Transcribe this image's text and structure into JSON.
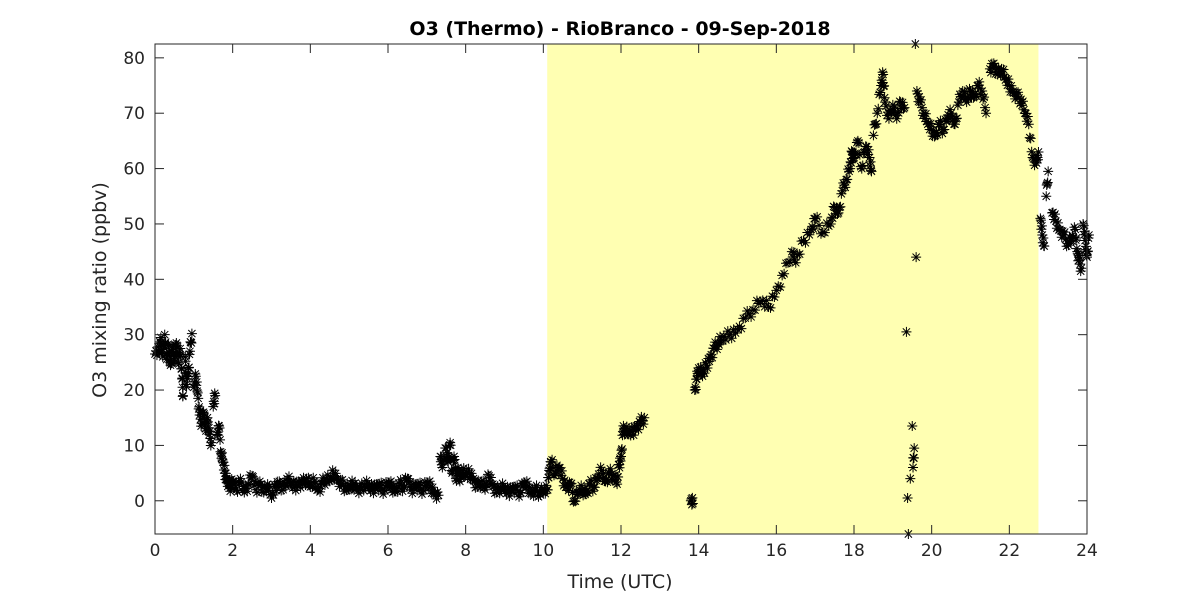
{
  "chart_data": {
    "type": "scatter",
    "title": "O3 (Thermo) - RioBranco - 09-Sep-2018",
    "xlabel": "Time (UTC)",
    "ylabel": "O3 mixing ratio (ppbv)",
    "xlim": [
      0,
      24
    ],
    "ylim": [
      -6,
      82.5
    ],
    "xticks": [
      0,
      2,
      4,
      6,
      8,
      10,
      12,
      14,
      16,
      18,
      20,
      22,
      24
    ],
    "yticks": [
      0,
      10,
      20,
      30,
      40,
      50,
      60,
      70,
      80
    ],
    "grid": false,
    "marker": "asterisk",
    "colors": {
      "marker": "#000000",
      "highlight": "#ffffb2",
      "axis": "#262626"
    },
    "highlight_region": {
      "x": [
        10.1,
        22.75
      ]
    },
    "series": [
      {
        "values": [
          [
            0.0,
            26.5
          ],
          [
            0.1,
            27
          ],
          [
            0.15,
            29.5
          ],
          [
            0.2,
            26
          ],
          [
            0.25,
            30
          ],
          [
            0.3,
            25.5
          ],
          [
            0.35,
            28
          ],
          [
            0.4,
            24.5
          ],
          [
            0.45,
            27
          ],
          [
            0.5,
            26
          ],
          [
            0.55,
            28.5
          ],
          [
            0.6,
            25
          ],
          [
            0.65,
            27.5
          ],
          [
            0.7,
            22
          ],
          [
            0.72,
            19
          ],
          [
            0.78,
            26
          ],
          [
            0.8,
            21
          ],
          [
            0.85,
            23
          ],
          [
            0.9,
            27
          ],
          [
            0.95,
            30.2
          ],
          [
            1.0,
            20.5
          ],
          [
            1.05,
            22.5
          ],
          [
            1.1,
            19.5
          ],
          [
            1.15,
            15.5
          ],
          [
            1.2,
            14
          ],
          [
            1.25,
            16
          ],
          [
            1.3,
            13
          ],
          [
            1.35,
            15
          ],
          [
            1.4,
            12
          ],
          [
            1.45,
            10.5
          ],
          [
            1.5,
            17
          ],
          [
            1.55,
            19
          ],
          [
            1.6,
            12
          ],
          [
            1.65,
            13.5
          ],
          [
            1.7,
            8.5
          ],
          [
            1.75,
            7
          ],
          [
            1.8,
            5
          ],
          [
            1.85,
            4
          ],
          [
            1.9,
            3
          ],
          [
            1.95,
            2.5
          ],
          [
            2.0,
            3.5
          ],
          [
            2.1,
            2
          ],
          [
            2.2,
            4
          ],
          [
            2.3,
            1.5
          ],
          [
            2.4,
            3
          ],
          [
            2.5,
            4.5
          ],
          [
            2.6,
            2
          ],
          [
            2.7,
            3.5
          ],
          [
            2.8,
            1.5
          ],
          [
            2.9,
            3
          ],
          [
            3.0,
            0.5
          ],
          [
            3.1,
            2.5
          ],
          [
            3.2,
            3.5
          ],
          [
            3.3,
            2
          ],
          [
            3.4,
            4
          ],
          [
            3.5,
            3
          ],
          [
            3.6,
            2.5
          ],
          [
            3.7,
            3.5
          ],
          [
            3.8,
            3
          ],
          [
            3.9,
            4
          ],
          [
            4.0,
            2.5
          ],
          [
            4.1,
            3.5
          ],
          [
            4.2,
            2
          ],
          [
            4.3,
            3
          ],
          [
            4.4,
            4
          ],
          [
            4.5,
            3.5
          ],
          [
            4.6,
            5
          ],
          [
            4.7,
            4
          ],
          [
            4.8,
            3
          ],
          [
            4.9,
            2.5
          ],
          [
            5.0,
            2
          ],
          [
            5.1,
            3
          ],
          [
            5.2,
            2.5
          ],
          [
            5.3,
            2
          ],
          [
            5.4,
            3
          ],
          [
            5.5,
            2.5
          ],
          [
            5.6,
            2
          ],
          [
            5.7,
            3
          ],
          [
            5.8,
            2.5
          ],
          [
            5.9,
            2
          ],
          [
            6.0,
            3
          ],
          [
            6.1,
            2.5
          ],
          [
            6.2,
            2
          ],
          [
            6.3,
            3
          ],
          [
            6.4,
            2.5
          ],
          [
            6.5,
            4
          ],
          [
            6.6,
            2
          ],
          [
            6.7,
            3
          ],
          [
            6.8,
            2.5
          ],
          [
            6.9,
            2
          ],
          [
            7.0,
            3
          ],
          [
            7.1,
            2.5
          ],
          [
            7.2,
            1.5
          ],
          [
            7.3,
            1
          ],
          [
            7.35,
            8
          ],
          [
            7.4,
            6
          ],
          [
            7.5,
            9.5
          ],
          [
            7.55,
            7
          ],
          [
            7.6,
            10.5
          ],
          [
            7.65,
            5
          ],
          [
            7.7,
            8
          ],
          [
            7.75,
            4
          ],
          [
            7.8,
            6
          ],
          [
            7.85,
            3.5
          ],
          [
            7.9,
            5.5
          ],
          [
            8.0,
            4.5
          ],
          [
            8.1,
            5
          ],
          [
            8.2,
            4
          ],
          [
            8.3,
            2.5
          ],
          [
            8.4,
            3.5
          ],
          [
            8.5,
            2
          ],
          [
            8.6,
            4.5
          ],
          [
            8.7,
            3
          ],
          [
            8.8,
            1.5
          ],
          [
            8.9,
            2.5
          ],
          [
            9.0,
            2
          ],
          [
            9.1,
            1.5
          ],
          [
            9.2,
            2.5
          ],
          [
            9.3,
            2
          ],
          [
            9.4,
            1.5
          ],
          [
            9.5,
            3
          ],
          [
            9.6,
            2.5
          ],
          [
            9.7,
            1.5
          ],
          [
            9.8,
            2
          ],
          [
            9.9,
            1.5
          ],
          [
            10.0,
            1.5
          ],
          [
            10.1,
            2
          ],
          [
            10.15,
            5.5
          ],
          [
            10.2,
            7
          ],
          [
            10.3,
            5
          ],
          [
            10.4,
            6
          ],
          [
            10.5,
            4
          ],
          [
            10.6,
            2.5
          ],
          [
            10.7,
            3
          ],
          [
            10.8,
            0
          ],
          [
            10.9,
            1.5
          ],
          [
            11.0,
            2
          ],
          [
            11.1,
            1.5
          ],
          [
            11.2,
            3
          ],
          [
            11.3,
            2.5
          ],
          [
            11.4,
            4
          ],
          [
            11.5,
            5.5
          ],
          [
            11.6,
            3.5
          ],
          [
            11.7,
            5
          ],
          [
            11.8,
            4.5
          ],
          [
            11.9,
            3
          ],
          [
            11.95,
            6.5
          ],
          [
            12.0,
            8
          ],
          [
            12.05,
            12.5
          ],
          [
            12.1,
            13
          ],
          [
            12.2,
            12
          ],
          [
            12.3,
            12.5
          ],
          [
            12.4,
            13.5
          ],
          [
            12.5,
            14
          ],
          [
            12.6,
            15
          ],
          [
            13.8,
            0
          ],
          [
            13.85,
            -0.5
          ],
          [
            13.9,
            20
          ],
          [
            13.95,
            22
          ],
          [
            14.0,
            24
          ],
          [
            14.1,
            22.5
          ],
          [
            14.2,
            24.5
          ],
          [
            14.3,
            26
          ],
          [
            14.4,
            27.5
          ],
          [
            14.5,
            28.5
          ],
          [
            14.6,
            29
          ],
          [
            14.8,
            30
          ],
          [
            15.0,
            31
          ],
          [
            15.2,
            33
          ],
          [
            15.4,
            34.5
          ],
          [
            15.6,
            36
          ],
          [
            15.8,
            35
          ],
          [
            16.0,
            38
          ],
          [
            16.2,
            41
          ],
          [
            16.4,
            45
          ],
          [
            16.5,
            43
          ],
          [
            16.7,
            47
          ],
          [
            16.9,
            49
          ],
          [
            17.0,
            51
          ],
          [
            17.2,
            48.5
          ],
          [
            17.4,
            50
          ],
          [
            17.5,
            53
          ],
          [
            17.6,
            52
          ],
          [
            17.7,
            56
          ],
          [
            17.8,
            58
          ],
          [
            17.9,
            60
          ],
          [
            17.95,
            63
          ],
          [
            18.0,
            62
          ],
          [
            18.1,
            65
          ],
          [
            18.2,
            60
          ],
          [
            18.3,
            64
          ],
          [
            18.4,
            62
          ],
          [
            18.45,
            59.5
          ],
          [
            18.5,
            66
          ],
          [
            18.6,
            70
          ],
          [
            18.7,
            75
          ],
          [
            18.75,
            77
          ],
          [
            18.8,
            72
          ],
          [
            18.9,
            69
          ],
          [
            19.0,
            71.5
          ],
          [
            19.1,
            69
          ],
          [
            19.2,
            72
          ],
          [
            19.3,
            71
          ],
          [
            19.35,
            30.5
          ],
          [
            19.38,
            0.5
          ],
          [
            19.4,
            -6
          ],
          [
            19.45,
            4
          ],
          [
            19.5,
            13.5
          ],
          [
            19.52,
            6
          ],
          [
            19.55,
            9.5
          ],
          [
            19.6,
            44
          ],
          [
            19.58,
            82.5
          ],
          [
            19.62,
            74
          ],
          [
            19.7,
            72
          ],
          [
            19.8,
            70
          ],
          [
            19.9,
            68
          ],
          [
            20.0,
            67
          ],
          [
            20.1,
            66
          ],
          [
            20.2,
            68
          ],
          [
            20.3,
            67
          ],
          [
            20.4,
            69
          ],
          [
            20.5,
            70
          ],
          [
            20.6,
            68
          ],
          [
            20.7,
            72
          ],
          [
            20.8,
            74
          ],
          [
            20.9,
            72
          ],
          [
            21.0,
            74
          ],
          [
            21.1,
            73
          ],
          [
            21.2,
            75
          ],
          [
            21.3,
            74
          ],
          [
            21.4,
            70
          ],
          [
            21.5,
            78
          ],
          [
            21.6,
            79
          ],
          [
            21.7,
            77
          ],
          [
            21.8,
            78
          ],
          [
            21.9,
            76
          ],
          [
            22.0,
            75
          ],
          [
            22.1,
            74
          ],
          [
            22.2,
            73
          ],
          [
            22.3,
            72.5
          ],
          [
            22.4,
            70
          ],
          [
            22.5,
            68
          ],
          [
            22.6,
            62
          ],
          [
            22.7,
            61
          ],
          [
            22.75,
            63
          ],
          [
            22.8,
            51
          ],
          [
            22.85,
            48
          ],
          [
            22.9,
            46
          ],
          [
            22.95,
            55
          ],
          [
            23.0,
            59.5
          ],
          [
            23.1,
            52
          ],
          [
            23.2,
            50.5
          ],
          [
            23.3,
            49
          ],
          [
            23.4,
            48
          ],
          [
            23.5,
            46.5
          ],
          [
            23.6,
            47
          ],
          [
            23.7,
            49
          ],
          [
            23.75,
            45
          ],
          [
            23.8,
            43.5
          ],
          [
            23.85,
            42
          ],
          [
            23.9,
            50
          ],
          [
            23.95,
            47
          ],
          [
            24.0,
            44
          ],
          [
            24.05,
            48
          ]
        ]
      }
    ]
  }
}
